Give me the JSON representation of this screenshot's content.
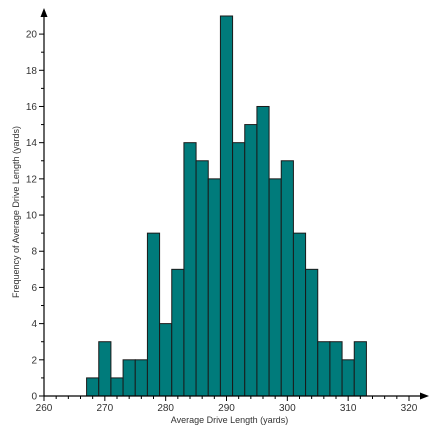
{
  "chart_data": {
    "type": "bar",
    "title": "",
    "xlabel": "Average Drive Length (yards)",
    "ylabel": "Frequency of Average Drive Length (yards)",
    "xlim": [
      260,
      320
    ],
    "ylim": [
      0,
      21
    ],
    "x_ticks": [
      260,
      270,
      280,
      290,
      300,
      310,
      320
    ],
    "y_ticks": [
      0,
      2,
      4,
      6,
      8,
      10,
      12,
      14,
      16,
      18,
      20
    ],
    "bin_width": 2,
    "bins": [
      {
        "start": 267,
        "end": 269,
        "value": 1
      },
      {
        "start": 269,
        "end": 271,
        "value": 3
      },
      {
        "start": 271,
        "end": 273,
        "value": 1
      },
      {
        "start": 273,
        "end": 275,
        "value": 2
      },
      {
        "start": 275,
        "end": 277,
        "value": 2
      },
      {
        "start": 277,
        "end": 279,
        "value": 9
      },
      {
        "start": 279,
        "end": 281,
        "value": 4
      },
      {
        "start": 281,
        "end": 283,
        "value": 7
      },
      {
        "start": 283,
        "end": 285,
        "value": 14
      },
      {
        "start": 285,
        "end": 287,
        "value": 13
      },
      {
        "start": 287,
        "end": 289,
        "value": 12
      },
      {
        "start": 289,
        "end": 291,
        "value": 21
      },
      {
        "start": 291,
        "end": 293,
        "value": 14
      },
      {
        "start": 293,
        "end": 295,
        "value": 15
      },
      {
        "start": 295,
        "end": 297,
        "value": 16
      },
      {
        "start": 297,
        "end": 299,
        "value": 12
      },
      {
        "start": 299,
        "end": 301,
        "value": 13
      },
      {
        "start": 301,
        "end": 303,
        "value": 9
      },
      {
        "start": 303,
        "end": 305,
        "value": 7
      },
      {
        "start": 305,
        "end": 307,
        "value": 3
      },
      {
        "start": 307,
        "end": 309,
        "value": 3
      },
      {
        "start": 309,
        "end": 311,
        "value": 2
      },
      {
        "start": 311,
        "end": 313,
        "value": 3
      }
    ],
    "grid": false,
    "bar_color": "#007B7B",
    "bar_edge_color": "#1a1a1a",
    "axis_color": "#000000"
  }
}
